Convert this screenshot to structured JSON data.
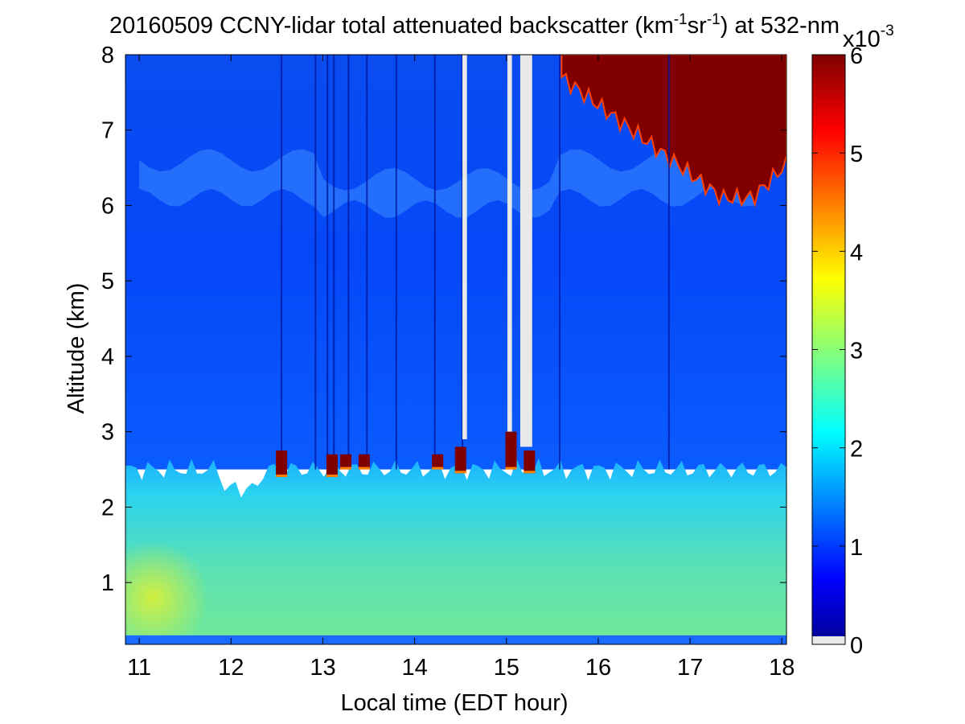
{
  "chart_data": {
    "type": "heatmap",
    "title": {
      "prefix": "20160509 CCNY-lidar total attenuated backscatter (km",
      "sup1": "-1",
      "mid": "sr",
      "sup2": "-1",
      "suffix": ") at 532-nm"
    },
    "xlabel": "Local time (EDT hour)",
    "ylabel": "Altitude (km)",
    "xlim": [
      10.85,
      18.05
    ],
    "ylim": [
      0.18,
      8.0
    ],
    "xticks": [
      11,
      12,
      13,
      14,
      15,
      16,
      17,
      18
    ],
    "yticks": [
      1,
      2,
      3,
      4,
      5,
      6,
      7,
      8
    ],
    "colorbar": {
      "range": [
        0,
        6
      ],
      "ticks": [
        0,
        1,
        2,
        3,
        4,
        5,
        6
      ],
      "multiplier": {
        "base": "x10",
        "exponent": "-3"
      },
      "colormap": "jet",
      "nodata_color": "#e8e8e8"
    },
    "layers": [
      {
        "name": "surface_layer",
        "altitude_km": [
          0.18,
          0.3
        ],
        "value": 1.2
      },
      {
        "name": "boundary_layer",
        "altitude_km": [
          0.3,
          2.5
        ],
        "value_range": [
          2.2,
          3.7
        ]
      },
      {
        "name": "free_troposphere",
        "altitude_km": [
          2.5,
          8.0
        ],
        "value": 0.9
      },
      {
        "name": "aerosol_layer",
        "time_range": [
          11.0,
          17.7
        ],
        "altitude_km": [
          6.0,
          6.6
        ],
        "value": 1.5
      },
      {
        "name": "cirrus_cloud",
        "time_range": [
          15.6,
          18.05
        ],
        "altitude_km": [
          6.0,
          8.0
        ],
        "value": 6.0
      }
    ],
    "cloud_tops_boundary_layer": [
      {
        "time": 12.55,
        "altitude_km": [
          2.4,
          2.75
        ]
      },
      {
        "time": 13.1,
        "altitude_km": [
          2.4,
          2.7
        ]
      },
      {
        "time": 13.25,
        "altitude_km": [
          2.5,
          2.7
        ]
      },
      {
        "time": 13.45,
        "altitude_km": [
          2.5,
          2.7
        ]
      },
      {
        "time": 14.25,
        "altitude_km": [
          2.5,
          2.7
        ]
      },
      {
        "time": 14.5,
        "altitude_km": [
          2.45,
          2.8
        ]
      },
      {
        "time": 15.05,
        "altitude_km": [
          2.5,
          3.0
        ]
      },
      {
        "time": 15.25,
        "altitude_km": [
          2.45,
          2.75
        ]
      }
    ],
    "nodata_intervals": [
      {
        "time_range": [
          14.52,
          14.57
        ],
        "altitude_km": [
          2.9,
          8.0
        ]
      },
      {
        "time_range": [
          15.01,
          15.06
        ],
        "altitude_km": [
          3.0,
          8.0
        ]
      },
      {
        "time_range": [
          15.15,
          15.28
        ],
        "altitude_km": [
          2.8,
          8.0
        ]
      }
    ]
  }
}
